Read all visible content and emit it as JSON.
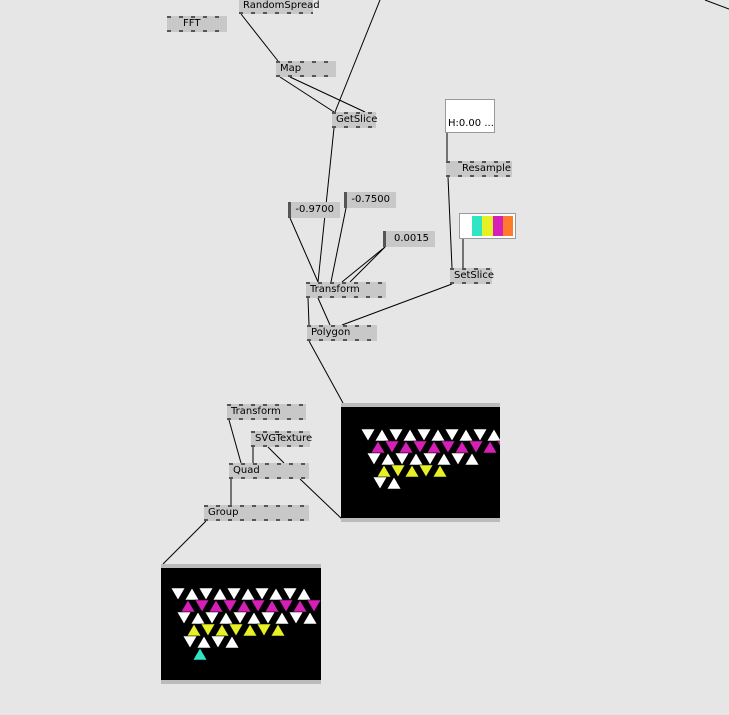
{
  "nodes": [
    {
      "label": "RandomSpread"
    },
    {
      "label": "FFT"
    },
    {
      "label": "Map"
    },
    {
      "label": "GetSlice"
    },
    {
      "label": "-0.9700"
    },
    {
      "label": "-0.7500"
    },
    {
      "label": "0.0015"
    },
    {
      "label": "Transform"
    },
    {
      "label": "Polygon"
    },
    {
      "label": "H:0.00  ..."
    },
    {
      "label": "Resample"
    },
    {
      "label": "SetSlice"
    },
    {
      "label": "Transform"
    },
    {
      "label": "SVGTexture"
    },
    {
      "label": "Quad"
    },
    {
      "label": "Group"
    }
  ]
}
